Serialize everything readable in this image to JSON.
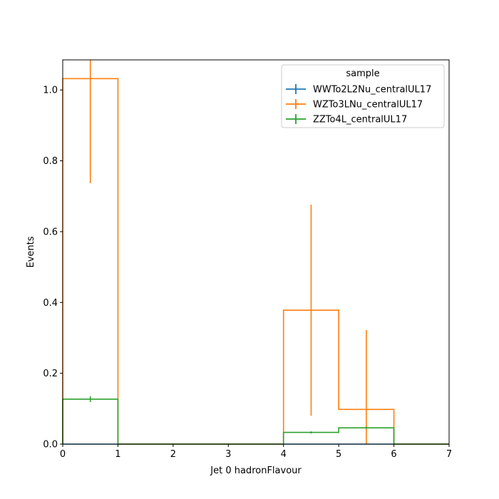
{
  "chart_data": {
    "type": "histogram-step",
    "title": "",
    "xlabel": "Jet 0 hadronFlavour",
    "ylabel": "Events",
    "xlim": [
      0,
      7
    ],
    "ylim": [
      0,
      1.085
    ],
    "xticks": [
      "0",
      "1",
      "2",
      "3",
      "4",
      "5",
      "6",
      "7"
    ],
    "yticks": [
      "0.0",
      "0.2",
      "0.4",
      "0.6",
      "0.8",
      "1.0"
    ],
    "bin_edges": [
      0,
      1,
      2,
      3,
      4,
      5,
      6,
      7
    ],
    "legend": {
      "title": "sample",
      "placement": "upper right"
    },
    "series": [
      {
        "name": "WWTo2L2Nu_centralUL17",
        "color": "#1f77b4",
        "values": [
          0,
          0,
          0,
          0,
          0,
          0,
          0
        ],
        "errors": [
          0,
          0,
          0,
          0,
          0,
          0,
          0
        ]
      },
      {
        "name": "WZTo3LNu_centralUL17",
        "color": "#ff7f0e",
        "values": [
          1.032,
          0,
          0,
          0,
          0.378,
          0.098,
          0
        ],
        "errors": [
          0.295,
          0,
          0,
          0,
          0.298,
          0.224,
          0
        ]
      },
      {
        "name": "ZZTo4L_centralUL17",
        "color": "#2ca02c",
        "values": [
          0.127,
          0,
          0,
          0,
          0.033,
          0.046,
          0
        ],
        "errors": [
          0.008,
          0,
          0,
          0,
          0.003,
          0.003,
          0
        ]
      }
    ]
  }
}
